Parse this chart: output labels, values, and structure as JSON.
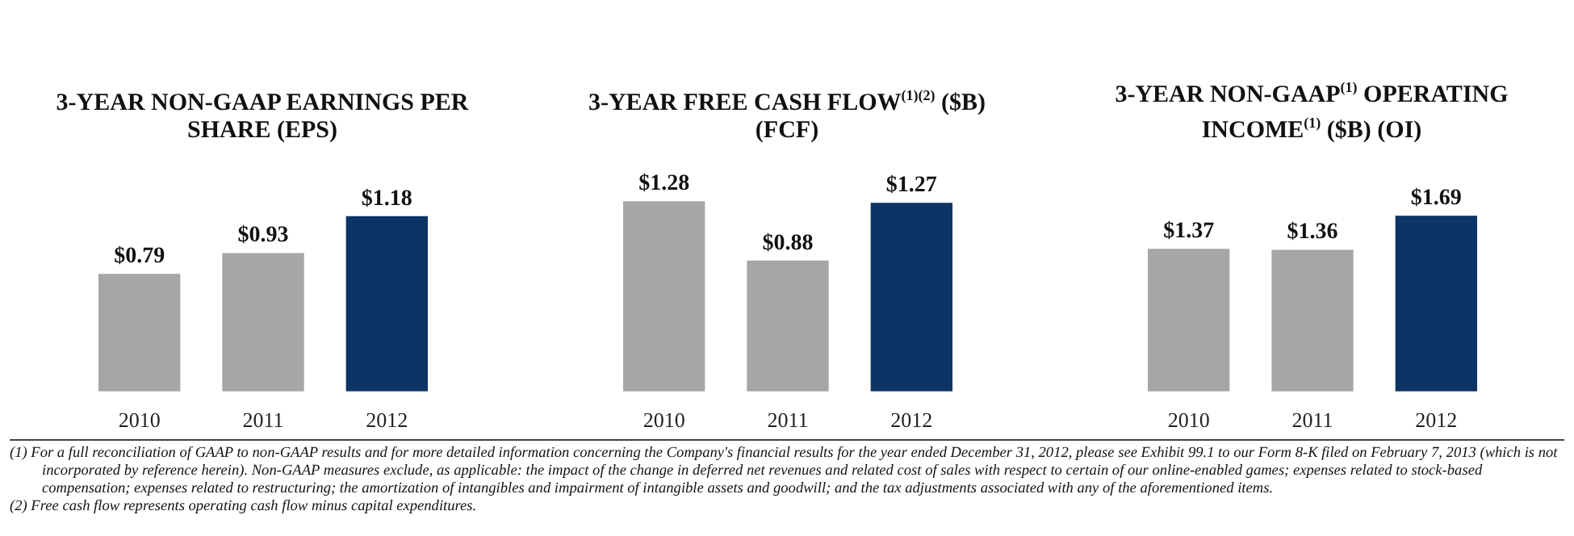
{
  "chart_data": [
    {
      "type": "bar",
      "title": "3-YEAR NON-GAAP EARNINGS PER SHARE (EPS)",
      "categories": [
        "2010",
        "2011",
        "2012"
      ],
      "values": [
        0.79,
        0.93,
        1.18
      ],
      "colors": [
        "#a6a6a6",
        "#a6a6a6",
        "#0c3464"
      ],
      "value_labels": [
        "$0.79",
        "$0.93",
        "$1.18"
      ],
      "legend": false,
      "grid": false,
      "tick_labels": "x"
    },
    {
      "type": "bar",
      "title": "3-YEAR FREE CASH FLOW$^{(1)(2)}$ ($B) (FCF)",
      "categories": [
        "2010",
        "2011",
        "2012"
      ],
      "values": [
        1.28,
        0.88,
        1.27
      ],
      "colors": [
        "#a6a6a6",
        "#a6a6a6",
        "#0c3464"
      ],
      "value_labels": [
        "$1.28",
        "$0.88",
        "$1.27"
      ],
      "legend": false,
      "grid": false,
      "tick_labels": "x"
    },
    {
      "type": "bar",
      "title": "3-YEAR NON-GAAP$^{(1)}$ OPERATING INCOME$^{(1)}$ ($B) (OI)",
      "categories": [
        "2010",
        "2011",
        "2012"
      ],
      "values": [
        1.37,
        1.36,
        1.69
      ],
      "colors": [
        "#a6a6a6",
        "#a6a6a6",
        "#0c3464"
      ],
      "value_labels": [
        "$1.37",
        "$1.36",
        "$1.69"
      ],
      "legend": false,
      "grid": false,
      "tick_labels": "x"
    },
    {
      "type": "other",
      "annotations": [
        "(1)  For a full reconciliation of GAAP to non-GAAP results and for more detailed information concerning the Company's financial results for the year ended December 31, 2012, please see Exhibit 99.1 to our Form 8-K filed on February 7, 2013 (which is not incorporated by reference herein). Non-GAAP measures exclude, as applicable: the impact of the change in deferred net revenues and related cost of sales with respect to certain of our online-enabled games; expenses related to stock-based compensation; expenses related to restructuring; the amortization of intangibles and impairment of intangible assets and goodwill; and the tax adjustments associated with any of the aforementioned items.",
        "(2)  Free cash flow represents operating cash flow minus capital expenditures."
      ]
    }
  ]
}
